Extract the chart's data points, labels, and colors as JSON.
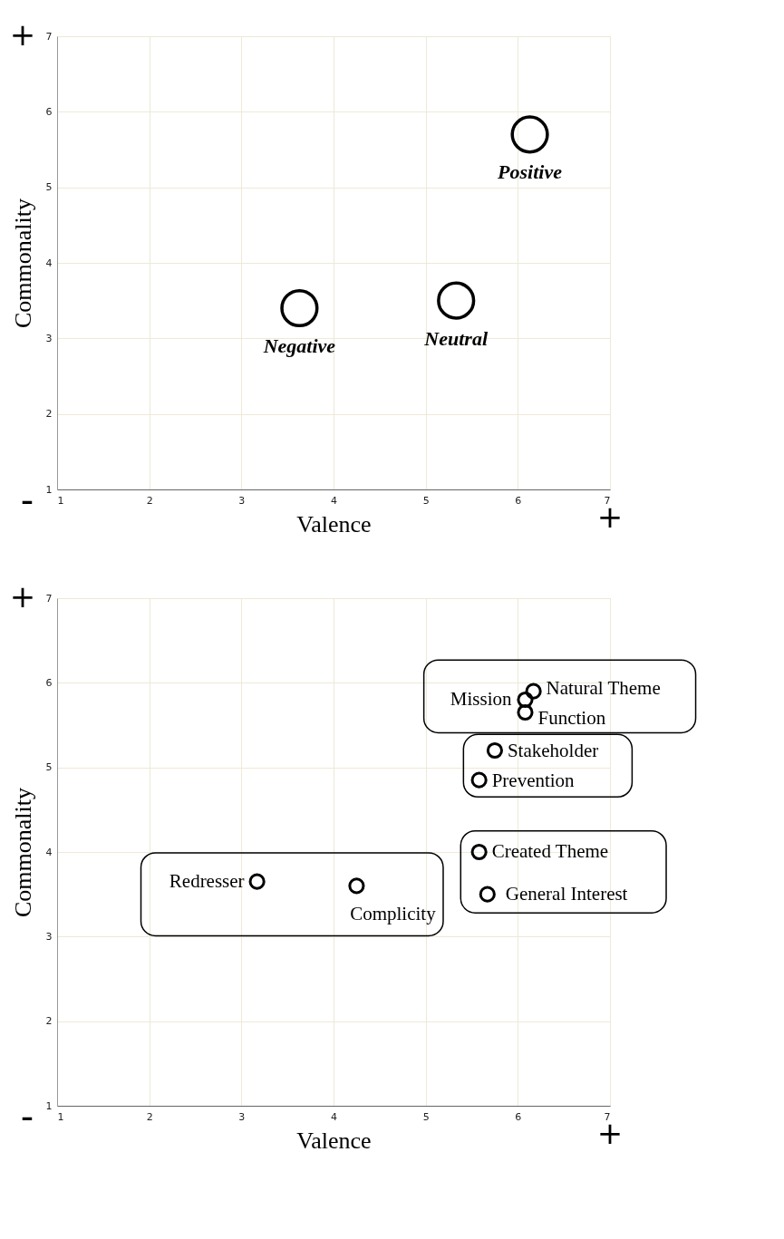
{
  "chart_data": [
    {
      "type": "scatter",
      "xlabel": "Valence",
      "ylabel": "Commonality",
      "xlim": [
        1,
        7
      ],
      "ylim": [
        1,
        7
      ],
      "xticks": [
        1,
        2,
        3,
        4,
        5,
        6,
        7
      ],
      "yticks": [
        1,
        2,
        3,
        4,
        5,
        6,
        7
      ],
      "grid": true,
      "marker": "circle",
      "series": [
        {
          "color": "#000000",
          "x": [
            3.63,
            5.33,
            6.13
          ],
          "values": [
            3.4,
            3.5,
            5.7
          ]
        }
      ],
      "annotations": [
        "+",
        "-",
        "+",
        {
          "text": "Negative",
          "x": 3.63,
          "y": 3.4
        },
        {
          "text": "Neutral",
          "x": 5.33,
          "y": 3.5
        },
        {
          "text": "Positive",
          "x": 6.13,
          "y": 5.7
        }
      ]
    },
    {
      "type": "scatter",
      "xlabel": "Valence",
      "ylabel": "Commonality",
      "xlim": [
        1,
        7
      ],
      "ylim": [
        1,
        7
      ],
      "xticks": [
        1,
        2,
        3,
        4,
        5,
        6,
        7
      ],
      "yticks": [
        1,
        2,
        3,
        4,
        5,
        6,
        7
      ],
      "grid": true,
      "marker": "circle",
      "series": [
        {
          "color": "#000000",
          "x": [
            6.08,
            6.17,
            6.08
          ],
          "values": [
            5.8,
            5.9,
            5.65
          ]
        },
        {
          "color": "#000000",
          "x": [
            5.75,
            5.58
          ],
          "values": [
            5.2,
            4.85
          ]
        },
        {
          "color": "#000000",
          "x": [
            5.58,
            5.67
          ],
          "values": [
            4.0,
            3.5
          ]
        },
        {
          "color": "#000000",
          "x": [
            3.17,
            4.25
          ],
          "values": [
            3.65,
            3.6
          ]
        }
      ],
      "annotations": [
        "+",
        "-",
        "+",
        {
          "text": "Mission",
          "x": 6.08,
          "y": 5.8
        },
        {
          "text": "Natural Theme",
          "x": 6.17,
          "y": 5.9
        },
        {
          "text": "Function",
          "x": 6.08,
          "y": 5.65
        },
        {
          "text": "Stakeholder",
          "x": 5.75,
          "y": 5.2
        },
        {
          "text": "Prevention",
          "x": 5.58,
          "y": 4.85
        },
        {
          "text": "Created Theme",
          "x": 5.58,
          "y": 4.0
        },
        {
          "text": "General Interest",
          "x": 5.67,
          "y": 3.5
        },
        {
          "text": "Redresser",
          "x": 3.17,
          "y": 3.65
        },
        {
          "text": "Complicity",
          "x": 4.25,
          "y": 3.6
        }
      ]
    }
  ]
}
